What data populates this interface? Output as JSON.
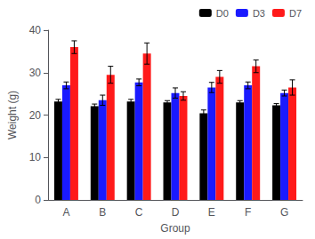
{
  "chart_data": {
    "type": "bar",
    "xlabel": "Group",
    "ylabel": "Weight (g)",
    "categories": [
      "A",
      "B",
      "C",
      "D",
      "E",
      "F",
      "G"
    ],
    "series": [
      {
        "name": "D0",
        "color": "#000000",
        "values": [
          23.2,
          22.1,
          23.2,
          23.0,
          20.4,
          23.0,
          22.3
        ],
        "errors": [
          0.5,
          0.5,
          0.5,
          0.4,
          0.8,
          0.4,
          0.4
        ]
      },
      {
        "name": "D3",
        "color": "#1a1aff",
        "values": [
          27.0,
          23.5,
          27.7,
          25.2,
          26.5,
          27.0,
          25.2
        ],
        "errors": [
          0.8,
          1.2,
          0.8,
          1.2,
          1.2,
          0.8,
          0.7
        ]
      },
      {
        "name": "D7",
        "color": "#ff1a1a",
        "values": [
          36.0,
          29.5,
          34.5,
          24.5,
          29.0,
          31.5,
          26.5
        ],
        "errors": [
          1.5,
          2.0,
          2.5,
          1.0,
          1.5,
          1.5,
          1.8
        ]
      }
    ],
    "ylim": [
      0,
      40
    ],
    "yticks": [
      0,
      10,
      20,
      30,
      40
    ],
    "grid": false,
    "legend": "upper right"
  }
}
